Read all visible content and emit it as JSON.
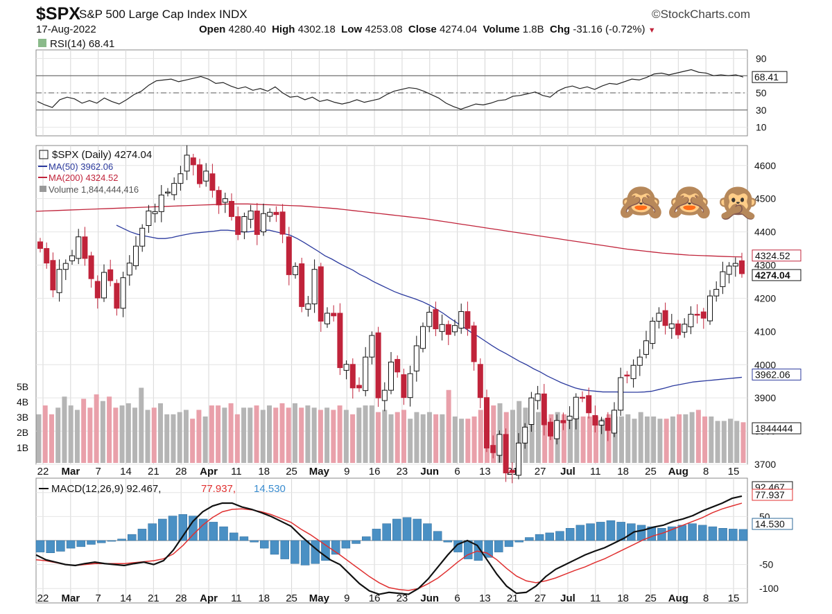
{
  "header": {
    "symbol": "$SPX",
    "index_name": "S&P 500 Large Cap Index",
    "index_type": "INDX",
    "brand": "©StockCharts.com",
    "date": "17-Aug-2022",
    "open_label": "Open",
    "open": "4280.40",
    "high_label": "High",
    "high": "4302.18",
    "low_label": "Low",
    "low": "4253.08",
    "close_label": "Close",
    "close": "4274.04",
    "volume_label": "Volume",
    "volume": "1.8B",
    "chg_label": "Chg",
    "chg": "-31.16 (-0.72%)"
  },
  "emojis": [
    "🙈",
    "🙈",
    "🙊"
  ],
  "colors": {
    "up": "#111111",
    "down": "#c0233a",
    "ma50": "#2b3a9e",
    "ma200": "#c0233a",
    "macd": "#111111",
    "signal": "#e03030",
    "hist": "#4a90c4",
    "vol_up": "#b5b5b5",
    "vol_down": "#e9a0aa"
  },
  "chart_data": [
    {
      "panel": "rsi",
      "type": "line",
      "title": "RSI(14)",
      "last_label": "68.41",
      "ylim": [
        0,
        100
      ],
      "yticks": [
        "90",
        "70",
        "50",
        "30",
        "10"
      ],
      "reference_lines": [
        70,
        50,
        30
      ],
      "values": [
        40,
        36,
        33,
        42,
        45,
        43,
        38,
        41,
        38,
        44,
        40,
        37,
        42,
        48,
        52,
        59,
        64,
        65,
        66,
        63,
        65,
        67,
        69,
        66,
        61,
        62,
        58,
        55,
        57,
        53,
        55,
        52,
        57,
        50,
        45,
        46,
        42,
        45,
        40,
        42,
        39,
        37,
        39,
        42,
        39,
        41,
        43,
        48,
        52,
        54,
        56,
        55,
        52,
        48,
        44,
        38,
        34,
        31,
        34,
        37,
        36,
        38,
        41,
        42,
        46,
        47,
        49,
        51,
        47,
        45,
        52,
        56,
        58,
        55,
        57,
        54,
        58,
        61,
        60,
        63,
        66,
        65,
        68,
        72,
        73,
        71,
        73,
        75,
        77,
        74,
        73,
        70,
        71,
        70,
        71,
        68.41
      ]
    },
    {
      "panel": "price",
      "type": "candlestick",
      "title": "$SPX (Daily)",
      "last": "4274.04",
      "ma50_label": "MA(50)",
      "ma50_last": "3962.06",
      "ma200_label": "MA(200)",
      "ma200_last": "4324.52",
      "volume_label": "Volume",
      "volume_last": "1,844,444,416",
      "volume_axis_label": "1844444",
      "ylim": [
        3700,
        4660
      ],
      "yticks": [
        "4600",
        "4500",
        "4400",
        "4300",
        "4200",
        "4100",
        "4000",
        "3900",
        "3800",
        "3700"
      ],
      "close": [
        4350,
        4306,
        4225,
        4287,
        4305,
        4328,
        4385,
        4320,
        4259,
        4201,
        4278,
        4253,
        4170,
        4262,
        4306,
        4357,
        4411,
        4463,
        4461,
        4511,
        4520,
        4546,
        4575,
        4631,
        4602,
        4545,
        4583,
        4525,
        4481,
        4500,
        4446,
        4392,
        4446,
        4463,
        4392,
        4455,
        4459,
        4452,
        4393,
        4271,
        4296,
        4175,
        4183,
        4287,
        4131,
        4155,
        4147,
        3991,
        4001,
        3930,
        3930,
        4023,
        4088,
        3900,
        3923,
        4008,
        3978,
        3901,
        3973,
        4057,
        4115,
        4158,
        4108,
        4121,
        4091,
        4118,
        4160,
        4109,
        4009,
        3901,
        3749,
        3735,
        3790,
        3674,
        3675,
        3764,
        3812,
        3900,
        3912,
        3819,
        3785,
        3832,
        3825,
        3845,
        3902,
        3899,
        3855,
        3818,
        3831,
        3802,
        3863,
        3961,
        3966,
        3998,
        4023,
        4072,
        4131,
        4155,
        4118,
        4123,
        4090,
        4122,
        4152,
        4151,
        4140,
        4207,
        4227,
        4280,
        4297,
        4305,
        4274.04
      ],
      "ma50": [
        4420,
        4410,
        4400,
        4393,
        4388,
        4384,
        4380,
        4380,
        4383,
        4388,
        4392,
        4396,
        4398,
        4400,
        4402,
        4405,
        4405,
        4403,
        4400,
        4400,
        4403,
        4405,
        4405,
        4400,
        4395,
        4390,
        4380,
        4368,
        4355,
        4342,
        4328,
        4318,
        4306,
        4295,
        4285,
        4272,
        4262,
        4250,
        4240,
        4230,
        4220,
        4212,
        4205,
        4198,
        4190,
        4180,
        4168,
        4155,
        4140,
        4126,
        4112,
        4098,
        4086,
        4072,
        4058,
        4045,
        4034,
        4022,
        4010,
        4000,
        3988,
        3978,
        3966,
        3956,
        3946,
        3938,
        3930,
        3925,
        3922,
        3920,
        3918,
        3918,
        3918,
        3917,
        3917,
        3917,
        3918,
        3920,
        3925,
        3930,
        3936,
        3940,
        3944,
        3948,
        3950,
        3952,
        3954,
        3956,
        3958,
        3960,
        3962.06
      ],
      "ma200": [
        4462,
        4463,
        4464,
        4465,
        4466,
        4467,
        4468,
        4469,
        4470,
        4471,
        4472,
        4473,
        4474,
        4475,
        4476,
        4477,
        4478,
        4479,
        4480,
        4481,
        4482,
        4483,
        4484,
        4484,
        4484,
        4483,
        4482,
        4481,
        4480,
        4479,
        4478,
        4476,
        4474,
        4472,
        4470,
        4467,
        4464,
        4461,
        4458,
        4455,
        4452,
        4449,
        4446,
        4443,
        4440,
        4436,
        4432,
        4428,
        4424,
        4420,
        4416,
        4412,
        4408,
        4404,
        4400,
        4396,
        4392,
        4388,
        4384,
        4380,
        4376,
        4372,
        4368,
        4364,
        4360,
        4356,
        4352,
        4348,
        4345,
        4342,
        4339,
        4336,
        4334,
        4332,
        4330,
        4329,
        4328,
        4327,
        4326,
        4325,
        4324.52
      ],
      "volume": [
        2.2,
        2.6,
        2.2,
        2.5,
        3.0,
        2.6,
        2.4,
        2.9,
        2.5,
        3.1,
        2.8,
        3.0,
        2.5,
        2.6,
        2.7,
        2.5,
        3.4,
        2.4,
        2.5,
        2.7,
        2.2,
        2.2,
        2.3,
        2.4,
        2.0,
        2.4,
        2.1,
        2.6,
        2.6,
        2.5,
        2.7,
        2.2,
        2.5,
        2.5,
        2.6,
        2.4,
        2.6,
        2.5,
        2.7,
        2.5,
        2.7,
        2.5,
        2.6,
        2.5,
        2.4,
        2.5,
        2.4,
        2.6,
        2.4,
        2.2,
        2.5,
        2.6,
        2.6,
        2.3,
        2.4,
        2.2,
        2.3,
        2.4,
        2.0,
        2.3,
        2.2,
        2.3,
        2.2,
        2.2,
        3.3,
        2.1,
        2.0,
        2.0,
        2.1,
        2.4,
        2.2,
        2.6,
        2.7,
        2.3,
        2.4,
        2.8,
        2.5,
        2.7,
        2.3,
        2.0,
        2.2,
        2.3,
        2.2,
        2.0,
        2.1,
        2.1,
        2.1,
        2.1,
        2.0,
        2.2,
        2.1,
        2.1,
        2.2,
        2.0,
        2.3,
        2.1,
        2.1,
        2.0,
        2.0,
        2.1,
        2.2,
        2.2,
        2.3,
        2.4,
        2.1,
        2.1,
        1.9,
        1.9,
        2.0,
        1.9,
        1.84
      ]
    },
    {
      "panel": "macd",
      "type": "line",
      "title": "MACD(12,26,9)",
      "macd_last": "92.467",
      "signal_last": "77.937",
      "hist_last": "14.530",
      "ylim": [
        -130,
        130
      ],
      "yticks": [
        "100",
        "50",
        "-50",
        "-100"
      ],
      "macd": [
        -30,
        -40,
        -45,
        -50,
        -52,
        -48,
        -45,
        -48,
        -50,
        -52,
        -48,
        -45,
        -50,
        -42,
        -20,
        10,
        40,
        60,
        72,
        78,
        78,
        70,
        65,
        58,
        50,
        40,
        30,
        10,
        -8,
        -25,
        -40,
        -50,
        -70,
        -90,
        -105,
        -112,
        -108,
        -110,
        -112,
        -100,
        -80,
        -55,
        -30,
        -8,
        0,
        -10,
        -40,
        -70,
        -95,
        -110,
        -108,
        -95,
        -75,
        -60,
        -50,
        -40,
        -30,
        -22,
        -15,
        -5,
        5,
        18,
        22,
        28,
        32,
        40,
        45,
        52,
        62,
        70,
        78,
        88,
        92.467
      ],
      "signal": [
        -40,
        -42,
        -46,
        -50,
        -52,
        -50,
        -48,
        -48,
        -48,
        -48,
        -46,
        -44,
        -42,
        -38,
        -28,
        -10,
        12,
        32,
        48,
        60,
        65,
        66,
        64,
        60,
        54,
        46,
        38,
        24,
        12,
        -2,
        -16,
        -30,
        -45,
        -60,
        -75,
        -88,
        -98,
        -102,
        -104,
        -100,
        -90,
        -78,
        -62,
        -45,
        -30,
        -22,
        -26,
        -40,
        -58,
        -74,
        -84,
        -88,
        -84,
        -78,
        -70,
        -62,
        -55,
        -46,
        -38,
        -28,
        -18,
        -8,
        2,
        10,
        16,
        24,
        32,
        40,
        48,
        58,
        66,
        72,
        77.937
      ],
      "hist": [
        -15,
        -16,
        -14,
        -10,
        -8,
        -5,
        -3,
        -1,
        2,
        8,
        15,
        22,
        28,
        32,
        34,
        32,
        28,
        24,
        18,
        10,
        5,
        -2,
        -10,
        -18,
        -24,
        -30,
        -32,
        -30,
        -26,
        -18,
        -10,
        -4,
        5,
        15,
        22,
        28,
        30,
        28,
        22,
        12,
        -2,
        -15,
        -24,
        -26,
        -22,
        -15,
        -8,
        -2,
        4,
        8,
        10,
        12,
        16,
        20,
        22,
        24,
        26,
        24,
        22,
        20,
        18,
        16,
        18,
        20,
        22,
        20,
        18,
        16,
        15,
        14.53
      ]
    },
    {
      "panel": "x-axis",
      "type": "axis",
      "labels": [
        "22",
        "Mar",
        "7",
        "14",
        "21",
        "28",
        "Apr",
        "11",
        "18",
        "25",
        "May",
        "9",
        "16",
        "23",
        "Jun",
        "6",
        "13",
        "21",
        "27",
        "Jul",
        "11",
        "18",
        "25",
        "Aug",
        "8",
        "15"
      ],
      "major": [
        "Mar",
        "Apr",
        "May",
        "Jun",
        "Jul",
        "Aug"
      ]
    }
  ]
}
